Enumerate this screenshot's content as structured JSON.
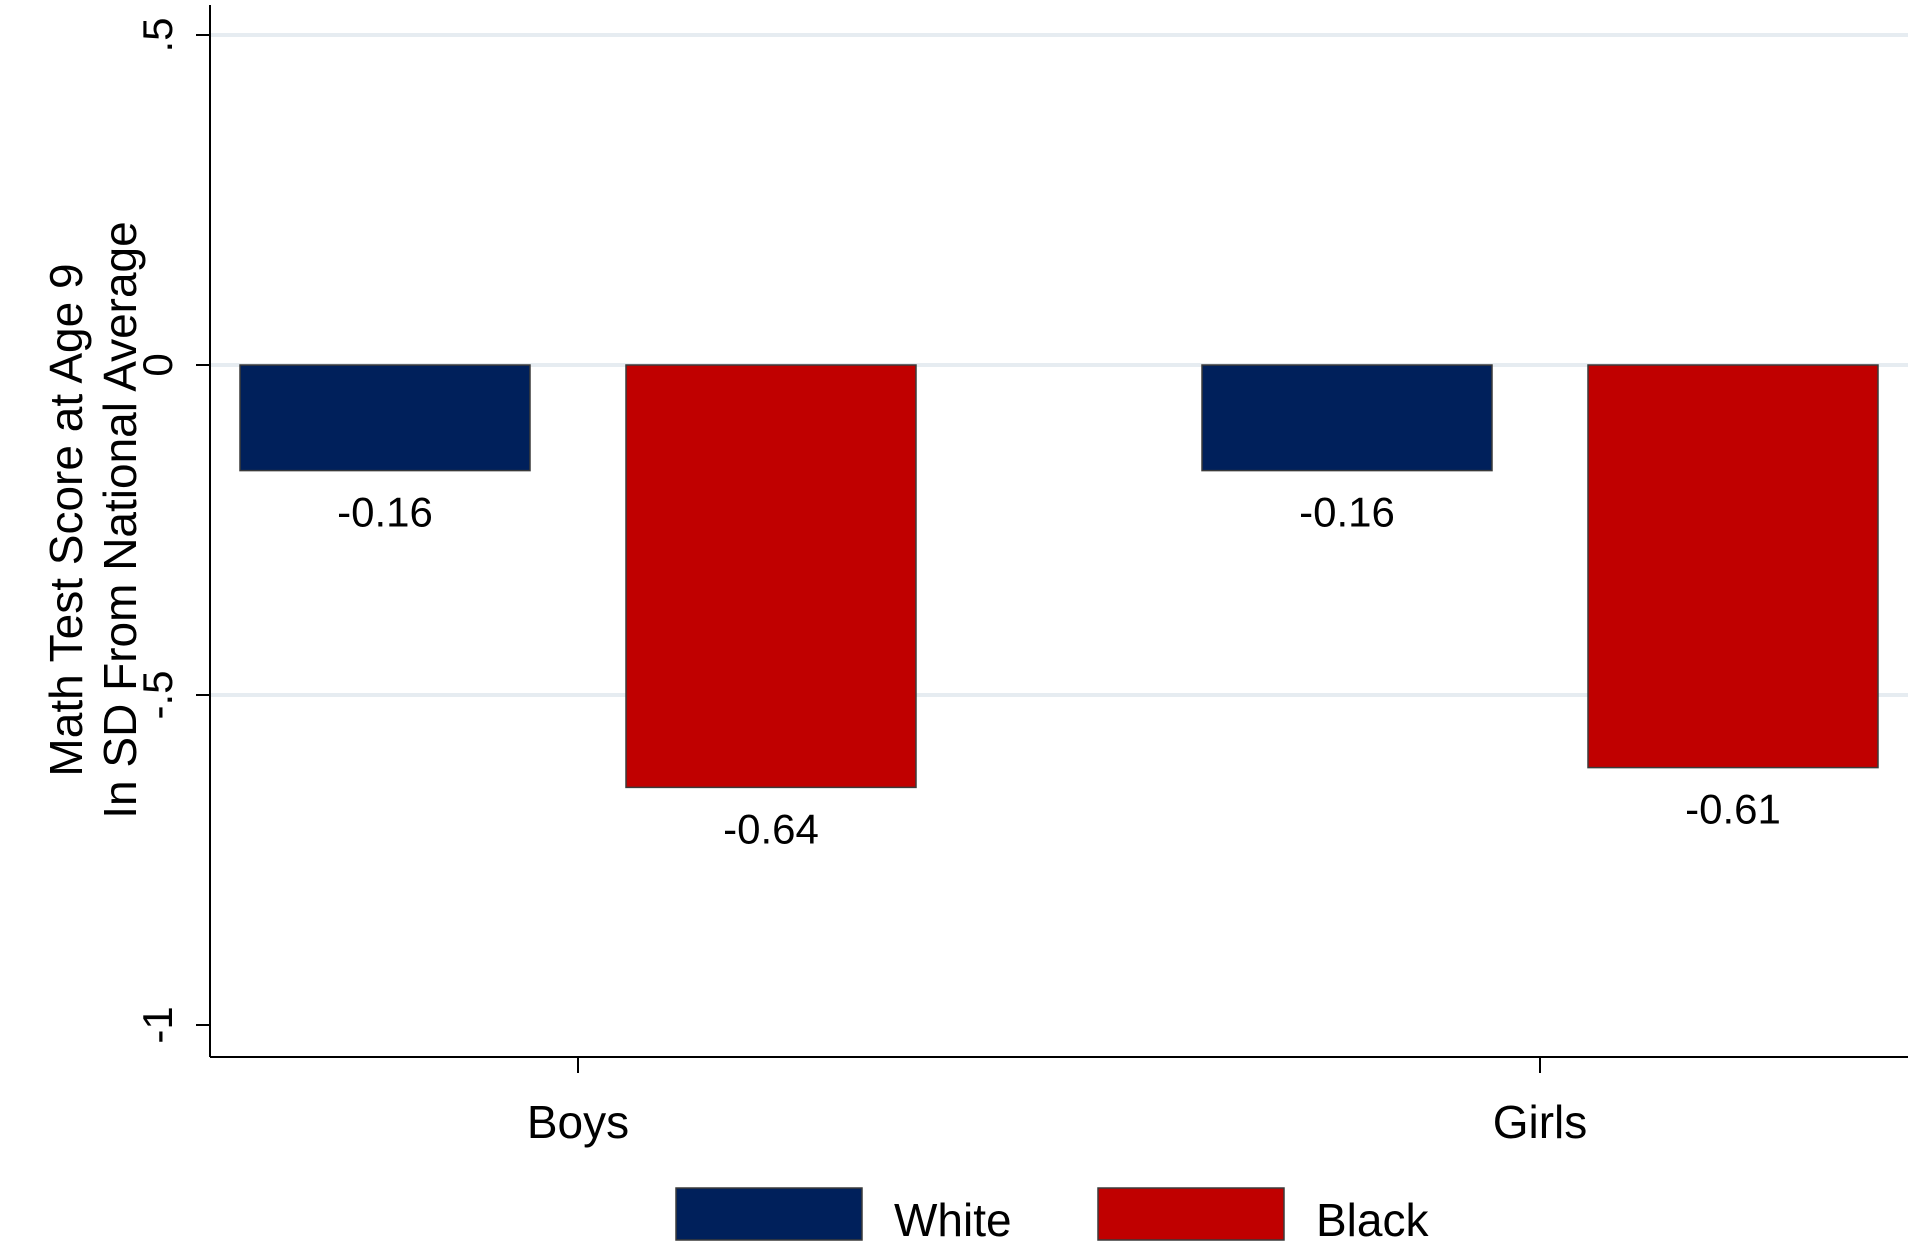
{
  "chart_data": {
    "type": "bar",
    "title": "",
    "ylabel": [
      "Math Test Score at Age 9",
      "In SD From National Average"
    ],
    "xlabel": "",
    "categories": [
      "Boys",
      "Girls"
    ],
    "series": [
      {
        "name": "White",
        "values": [
          -0.16,
          -0.16
        ],
        "value_labels": [
          "-0.16",
          "-0.16"
        ],
        "color": "#00205b"
      },
      {
        "name": "Black",
        "values": [
          -0.64,
          -0.61
        ],
        "value_labels": [
          "-0.64",
          "-0.61"
        ],
        "color": "#c00000"
      }
    ],
    "ylim": [
      -1.05,
      0.55
    ],
    "yticks": [
      0.5,
      0,
      -0.5,
      -1
    ],
    "ytick_labels": [
      ".5",
      "0",
      "-.5",
      "-1"
    ],
    "grid": true,
    "gridline_color": "#e6ecf1",
    "legend_position": "bottom"
  }
}
